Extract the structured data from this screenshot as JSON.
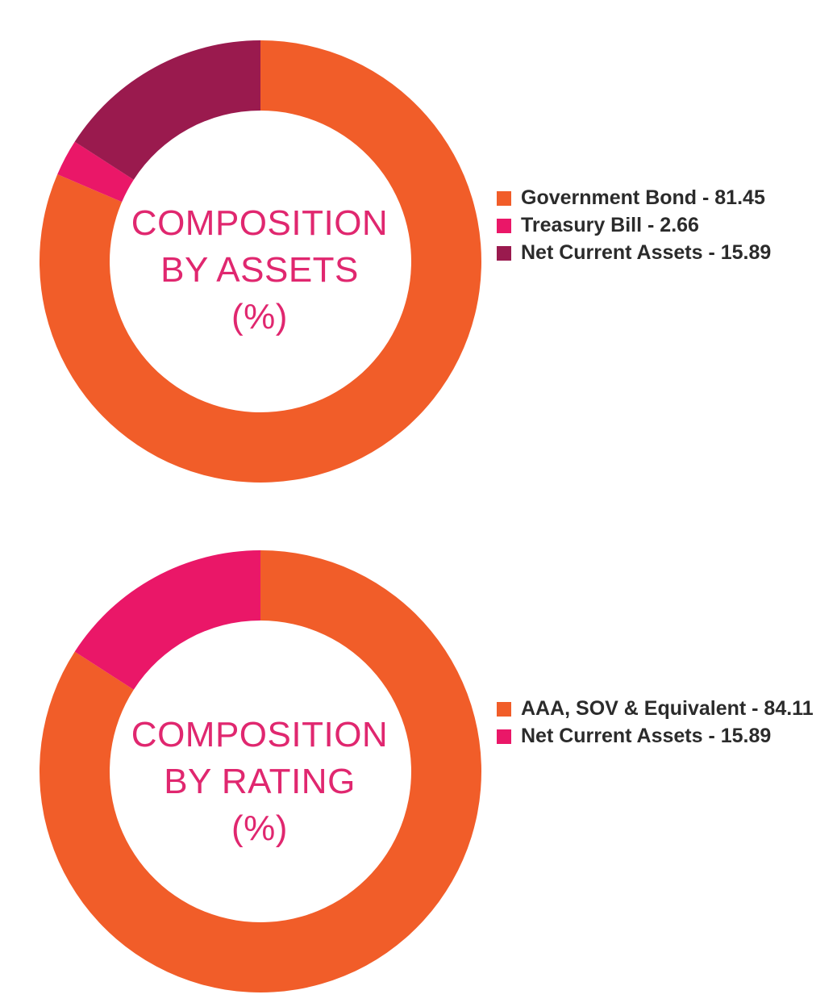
{
  "chart_data": [
    {
      "type": "pie",
      "center_label": [
        "COMPOSITION",
        "BY ASSETS",
        "(%)"
      ],
      "categories": [
        "Government Bond",
        "Treasury Bill",
        "Net Current Assets"
      ],
      "values": [
        81.45,
        2.66,
        15.89
      ],
      "legend_labels": [
        "Government Bond - 81.45",
        "Treasury Bill - 2.66",
        "Net Current Assets - 15.89"
      ],
      "colors": [
        "#f15d29",
        "#ea1768",
        "#9a1a4e"
      ],
      "legend_position": "right"
    },
    {
      "type": "pie",
      "center_label": [
        "COMPOSITION",
        "BY RATING",
        "(%)"
      ],
      "categories": [
        "AAA, SOV & Equivalent",
        "Net Current Assets"
      ],
      "values": [
        84.11,
        15.89
      ],
      "legend_labels": [
        "AAA, SOV & Equivalent - 84.11",
        "Net Current Assets - 15.89"
      ],
      "colors": [
        "#f15d29",
        "#ea1768"
      ],
      "legend_position": "right"
    }
  ]
}
